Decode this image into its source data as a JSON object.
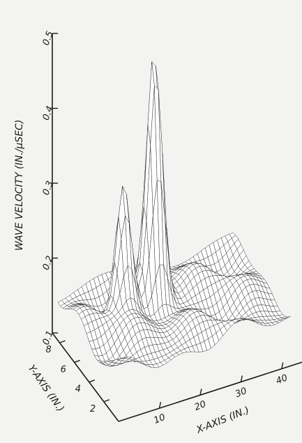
{
  "chart_data": {
    "type": "surface3d",
    "title": "",
    "zlabel": "WAVE VELOCITY  (IN./μSEC)",
    "xlabel": "X-AXIS  (IN.)",
    "ylabel": "Y-AXIS  (IN.)",
    "z_ticks": [
      {
        "value": 0.1,
        "label": "0.1"
      },
      {
        "value": 0.2,
        "label": "0.2"
      },
      {
        "value": 0.3,
        "label": "0.3"
      },
      {
        "value": 0.4,
        "label": "0.4"
      },
      {
        "value": 0.5,
        "label": "0.5"
      }
    ],
    "x_ticks": [
      {
        "value": 10,
        "label": "10"
      },
      {
        "value": 20,
        "label": "20"
      },
      {
        "value": 30,
        "label": "30"
      },
      {
        "value": 40,
        "label": "40"
      }
    ],
    "y_ticks": [
      {
        "value": 2,
        "label": "2"
      },
      {
        "value": 4,
        "label": "4"
      },
      {
        "value": 6,
        "label": "6"
      },
      {
        "value": 8,
        "label": "8"
      }
    ],
    "xlim": [
      0,
      45
    ],
    "ylim": [
      0,
      9
    ],
    "zlim": [
      0.1,
      0.5
    ],
    "peaks": [
      {
        "x": 20,
        "y": 6.2,
        "z": 0.48
      },
      {
        "x": 12,
        "y": 6.0,
        "z": 0.33
      }
    ],
    "baseline": 0.15,
    "grid": true
  }
}
